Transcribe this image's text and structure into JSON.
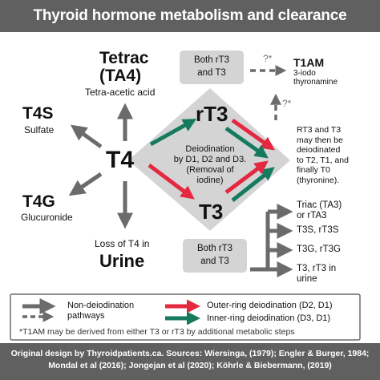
{
  "title": "Thyroid hormone metabolism and clearance",
  "hormones": {
    "tetrac": "Tetrac",
    "ta4": "(TA4)",
    "tetrac_desc": "Tetra-acetic acid",
    "t4s": "T4S",
    "t4s_desc": "Sulfate",
    "t4": "T4",
    "t4g": "T4G",
    "t4g_desc": "Glucuronide",
    "urine_prefix": "Loss of T4 in",
    "urine": "Urine",
    "rt3": "rT3",
    "t3": "T3"
  },
  "boxes": {
    "top_line1": "Both rT3",
    "top_line2": "and T3",
    "bottom_line1": "Both rT3",
    "bottom_line2": "and T3",
    "center_line1": "Deiodination",
    "center_line2": "by D1, D2 and D3.",
    "center_line3": "(Removal of",
    "center_line4": "iodine)"
  },
  "right_column": {
    "q_top": "?*",
    "t1am": "T1AM",
    "t1am_desc1": "3-iodo",
    "t1am_desc2": "thyronamine",
    "q_mid": "?*",
    "note": [
      "RT3 and T3",
      "may then be",
      "deiodinated",
      "to T2, T1, and",
      "finally T0",
      "(thyronine)."
    ],
    "products": [
      [
        "Triac (TA3)",
        "or rTA3"
      ],
      [
        "T3S, rT3S"
      ],
      [
        "T3G, rT3G"
      ],
      [
        "T3, rT3 in",
        "urine"
      ]
    ]
  },
  "legend": {
    "non_deiod": "Non-deiodination",
    "pathways": "pathways",
    "outer": "Outer-ring deiodination (D2, D1)",
    "inner": "Inner-ring deiodination (D3, D1)",
    "footnote": "*T1AM may be derived from either T3 or rT3 by additional metabolic steps"
  },
  "footer": {
    "line1": "Original design by Thyroidpatients.ca. Sources: Wiersinga, (1979); Engler & Burger, 1984;",
    "line2": "Mondal et al (2016);  Jongejan et al (2020); Köhrle & Biebermann, (2019)"
  },
  "colors": {
    "gray": "#6b6b6b",
    "light_gray": "#d4d4d4",
    "red": "#e3283f",
    "green": "#167a5e"
  }
}
